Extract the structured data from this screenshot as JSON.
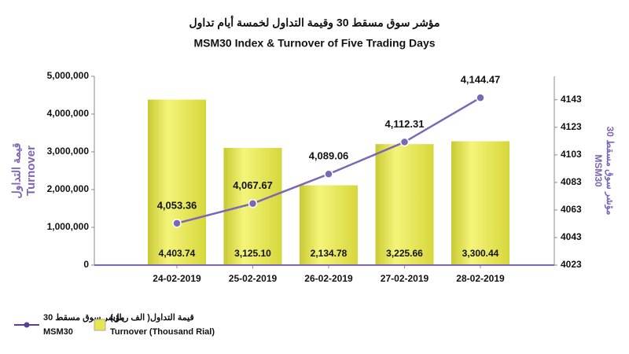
{
  "chart_data": {
    "type": "bar_line",
    "title_ar": "مؤشر سوق مسقط 30 وقيمة التداول لخمسة أيام تداول",
    "title": "MSM30 Index & Turnover of Five Trading Days",
    "y_label_ar": "قيمة التداول",
    "y_label": "Turnover",
    "y2_label_ar": "مؤشر سوق مسقط 30",
    "y2_label": "MSM30",
    "categories": [
      "24-02-2019",
      "25-02-2019",
      "26-02-2019",
      "27-02-2019",
      "28-02-2019"
    ],
    "series": [
      {
        "name_ar": "مؤشر سوق مسقط 30",
        "name": "MSM30",
        "type": "line",
        "axis": "y2",
        "color": "#7a68b4",
        "values": [
          4053.36,
          4067.67,
          4089.06,
          4112.31,
          4144.47
        ],
        "value_labels": [
          "4,053.36",
          "4,067.67",
          "4,089.06",
          "4,112.31",
          "4,144.47"
        ]
      },
      {
        "name_ar": "قيمة التداول( الف ريال)",
        "name": "Turnover (Thousand Rial)",
        "type": "bar",
        "color": "#e6e650",
        "values": [
          4403740,
          3125100,
          2134780,
          3225660,
          3300440
        ],
        "value_labels": [
          "4,403.74",
          "3,125.10",
          "2,134.78",
          "3,225.66",
          "3,300.44"
        ]
      }
    ],
    "ylim": [
      0,
      5000000
    ],
    "yticks": [
      0,
      {
        "value": 1000000,
        "label": "1,000,000"
      },
      {
        "value": 2000000,
        "label": "2,000,000"
      },
      {
        "value": 3000000,
        "label": "3,000,000"
      },
      {
        "value": 4000000,
        "label": "4,000,000"
      },
      {
        "value": 5000000,
        "label": "5,000,000"
      }
    ],
    "y2lim": [
      4023,
      4160
    ],
    "y2ticks": [
      4023,
      4043,
      4063,
      4083,
      4103,
      4123,
      4143
    ]
  }
}
